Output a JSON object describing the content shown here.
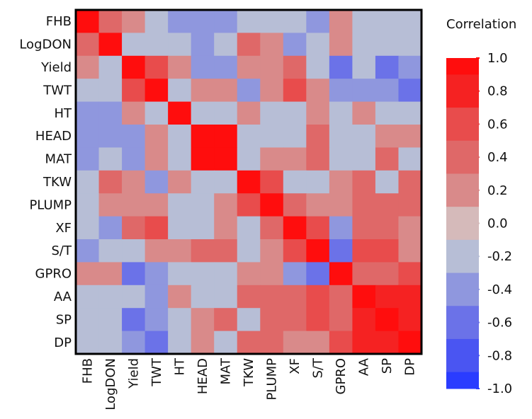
{
  "chart_data": {
    "type": "heatmap",
    "title": "",
    "variables": [
      "FHB",
      "LogDON",
      "Yield",
      "TWT",
      "HT",
      "HEAD",
      "MAT",
      "TKW",
      "PLUMP",
      "XF",
      "S/T",
      "GPRO",
      "AA",
      "SP",
      "DP"
    ],
    "matrix": [
      [
        1.0,
        0.3,
        0.1,
        -0.15,
        -0.45,
        -0.35,
        -0.35,
        -0.2,
        -0.2,
        -0.2,
        -0.35,
        0.1,
        -0.2,
        -0.2,
        -0.2
      ],
      [
        0.3,
        1.0,
        -0.15,
        -0.15,
        -0.3,
        -0.5,
        -0.2,
        0.3,
        0.1,
        -0.35,
        -0.2,
        0.1,
        -0.2,
        -0.2,
        -0.2
      ],
      [
        0.1,
        -0.15,
        1.0,
        0.6,
        0.1,
        -0.5,
        -0.35,
        0.1,
        0.1,
        0.3,
        -0.15,
        -0.55,
        -0.2,
        -0.55,
        -0.35
      ],
      [
        -0.2,
        -0.2,
        0.5,
        1.0,
        -0.2,
        0.1,
        0.1,
        -0.35,
        0.1,
        0.6,
        0.1,
        -0.35,
        -0.35,
        -0.35,
        -0.55
      ],
      [
        -0.5,
        -0.35,
        0.1,
        -0.2,
        1.0,
        -0.2,
        -0.2,
        0.1,
        -0.2,
        -0.2,
        0.1,
        -0.2,
        0.1,
        -0.2,
        -0.2
      ],
      [
        -0.35,
        -0.5,
        -0.5,
        0.1,
        -0.2,
        1.0,
        1.0,
        -0.2,
        -0.2,
        -0.2,
        0.3,
        -0.2,
        -0.2,
        0.1,
        0.1
      ],
      [
        -0.35,
        -0.2,
        -0.35,
        0.1,
        -0.2,
        1.0,
        1.0,
        -0.2,
        0.1,
        0.1,
        0.3,
        -0.2,
        -0.2,
        0.3,
        -0.15
      ],
      [
        -0.2,
        0.3,
        0.1,
        -0.35,
        0.1,
        -0.2,
        -0.2,
        1.0,
        0.6,
        -0.2,
        -0.15,
        0.1,
        0.3,
        -0.15,
        0.3
      ],
      [
        -0.2,
        0.1,
        0.1,
        0.1,
        -0.2,
        -0.2,
        0.1,
        0.6,
        1.0,
        0.3,
        0.1,
        0.1,
        0.3,
        0.3,
        0.3
      ],
      [
        -0.2,
        -0.35,
        0.3,
        0.6,
        -0.2,
        -0.2,
        0.1,
        -0.2,
        0.3,
        1.0,
        0.6,
        -0.35,
        0.3,
        0.3,
        0.1
      ],
      [
        -0.35,
        -0.2,
        -0.2,
        0.1,
        0.1,
        0.3,
        0.3,
        -0.2,
        0.1,
        0.6,
        1.0,
        -0.55,
        0.6,
        0.6,
        0.1
      ],
      [
        0.1,
        0.1,
        -0.55,
        -0.35,
        -0.2,
        -0.2,
        -0.2,
        0.1,
        0.1,
        -0.35,
        -0.55,
        1.0,
        0.3,
        0.3,
        0.6
      ],
      [
        -0.2,
        -0.2,
        -0.2,
        -0.35,
        0.1,
        -0.2,
        -0.2,
        0.3,
        0.3,
        0.3,
        0.6,
        0.3,
        1.0,
        0.7,
        0.7
      ],
      [
        -0.2,
        -0.2,
        -0.55,
        -0.35,
        -0.2,
        0.1,
        0.3,
        -0.15,
        0.3,
        0.3,
        0.6,
        0.3,
        0.7,
        1.0,
        0.7
      ],
      [
        -0.2,
        -0.2,
        -0.35,
        -0.55,
        -0.2,
        0.1,
        -0.15,
        0.3,
        0.3,
        0.1,
        0.1,
        0.6,
        0.7,
        0.7,
        1.0
      ]
    ],
    "colorbar": {
      "title": "Correlation",
      "range": [
        -1.0,
        1.0
      ],
      "tick_labels": [
        "1.0",
        "0.8",
        "0.6",
        "0.4",
        "0.2",
        "0.0",
        "-0.2",
        "-0.4",
        "-0.6",
        "-0.8",
        "-1.0"
      ],
      "bands": [
        {
          "from": 0.9,
          "to": 1.0,
          "color": "#ff0d0d"
        },
        {
          "from": 0.7,
          "to": 0.9,
          "color": "#f52222"
        },
        {
          "from": 0.5,
          "to": 0.7,
          "color": "#e84c4c"
        },
        {
          "from": 0.3,
          "to": 0.5,
          "color": "#df6868"
        },
        {
          "from": 0.1,
          "to": 0.3,
          "color": "#d98a8a"
        },
        {
          "from": -0.1,
          "to": 0.1,
          "color": "#d5baba"
        },
        {
          "from": -0.3,
          "to": -0.1,
          "color": "#b7bed6"
        },
        {
          "from": -0.5,
          "to": -0.3,
          "color": "#8f97de"
        },
        {
          "from": -0.7,
          "to": -0.5,
          "color": "#6b72e8"
        },
        {
          "from": -0.9,
          "to": -0.7,
          "color": "#4a55f2"
        },
        {
          "from": -1.0,
          "to": -0.9,
          "color": "#2a3cff"
        }
      ]
    },
    "legend_position": "right"
  }
}
